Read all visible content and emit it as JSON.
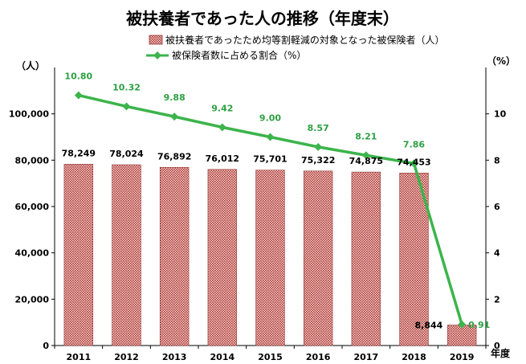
{
  "chart_data": {
    "type": "bar+line",
    "title": "被扶養者であった人の推移（年度末）",
    "categories": [
      "2011",
      "2012",
      "2013",
      "2014",
      "2015",
      "2016",
      "2017",
      "2018",
      "2019"
    ],
    "xlabel_unit": "年度",
    "series": [
      {
        "name": "被扶養者であったため均等割軽減の対象となった被保険者（人）",
        "type": "bar",
        "axis": "left",
        "values": [
          78249,
          78024,
          76892,
          76012,
          75701,
          75322,
          74875,
          74453,
          8844
        ],
        "labels": [
          "78,249",
          "78,024",
          "76,892",
          "76,012",
          "75,701",
          "75,322",
          "74,875",
          "74,453",
          "8,844"
        ]
      },
      {
        "name": "被保険者数に占める割合（%）",
        "type": "line",
        "axis": "right",
        "values": [
          10.8,
          10.32,
          9.88,
          9.42,
          9.0,
          8.57,
          8.21,
          7.86,
          0.91
        ],
        "labels": [
          "10.80",
          "10.32",
          "9.88",
          "9.42",
          "9.00",
          "8.57",
          "8.21",
          "7.86",
          "0.91"
        ]
      }
    ],
    "y_left": {
      "unit": "（人）",
      "ylim": [
        0,
        120000
      ],
      "ticks": [
        0,
        20000,
        40000,
        60000,
        80000,
        100000
      ],
      "tick_labels": [
        "0",
        "20,000",
        "40,000",
        "60,000",
        "80,000",
        "100,000"
      ]
    },
    "y_right": {
      "unit": "（%）",
      "ylim": [
        0,
        12
      ],
      "ticks": [
        0,
        2,
        4,
        6,
        8,
        10
      ],
      "tick_labels": [
        "0",
        "2",
        "4",
        "6",
        "8",
        "10"
      ]
    },
    "grid": false,
    "legend_position": "top",
    "colors": {
      "bar_fill": "#c0504d",
      "bar_fill_light": "#f2dcdb",
      "bar_stroke": "#943634",
      "line": "#3cb44b",
      "line_label": "#2ea043",
      "axis": "#000000"
    }
  }
}
